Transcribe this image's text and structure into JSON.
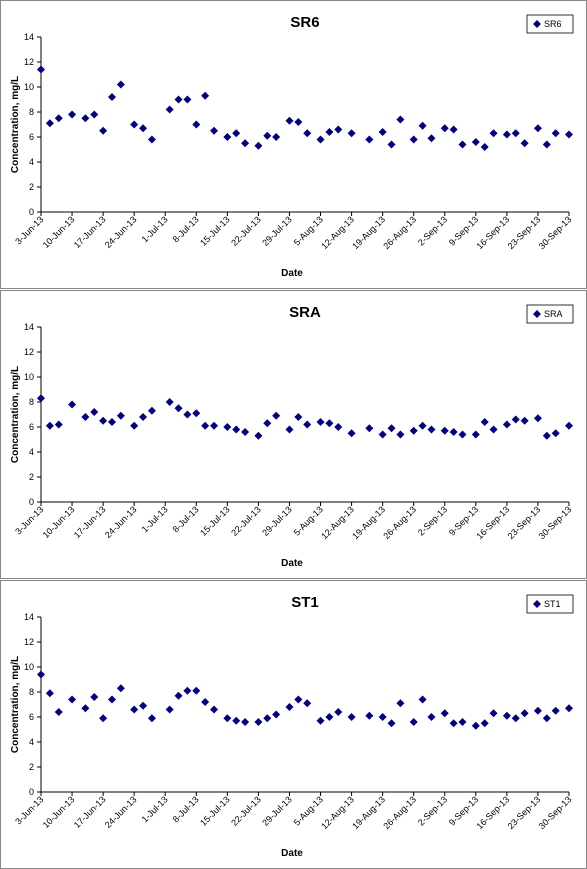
{
  "chart_data": [
    {
      "type": "scatter",
      "title": "SR6",
      "x_label": "Date",
      "y_label": "Concentration, mg/L",
      "marker": "diamond",
      "grid": false,
      "legend": "top-right",
      "x": [
        "2013-06-03",
        "2013-06-05",
        "2013-06-07",
        "2013-06-10",
        "2013-06-13",
        "2013-06-15",
        "2013-06-17",
        "2013-06-19",
        "2013-06-21",
        "2013-06-24",
        "2013-06-26",
        "2013-06-28",
        "2013-07-02",
        "2013-07-04",
        "2013-07-06",
        "2013-07-08",
        "2013-07-10",
        "2013-07-12",
        "2013-07-15",
        "2013-07-17",
        "2013-07-19",
        "2013-07-22",
        "2013-07-24",
        "2013-07-26",
        "2013-07-29",
        "2013-07-31",
        "2013-08-02",
        "2013-08-05",
        "2013-08-07",
        "2013-08-09",
        "2013-08-12",
        "2013-08-16",
        "2013-08-19",
        "2013-08-21",
        "2013-08-23",
        "2013-08-26",
        "2013-08-28",
        "2013-08-30",
        "2013-09-02",
        "2013-09-04",
        "2013-09-06",
        "2013-09-09",
        "2013-09-11",
        "2013-09-13",
        "2013-09-16",
        "2013-09-18",
        "2013-09-20",
        "2013-09-23",
        "2013-09-25",
        "2013-09-27",
        "2013-09-30"
      ],
      "series": [
        {
          "name": "SR6",
          "color": "#000080",
          "values": [
            11.4,
            7.1,
            7.5,
            7.8,
            7.5,
            7.8,
            6.5,
            9.2,
            10.2,
            7.0,
            6.7,
            5.8,
            8.2,
            9.0,
            9.0,
            7.0,
            9.3,
            6.5,
            6.0,
            6.3,
            5.5,
            5.3,
            6.1,
            6.0,
            7.3,
            7.2,
            6.3,
            5.8,
            6.4,
            6.6,
            6.3,
            5.8,
            6.4,
            5.4,
            7.4,
            5.8,
            6.9,
            5.9,
            6.7,
            6.6,
            5.4,
            5.6,
            5.2,
            6.3,
            6.2,
            6.3,
            5.5,
            6.7,
            5.4,
            6.3,
            6.2
          ]
        }
      ],
      "xlim": [
        "2013-06-03",
        "2013-09-30"
      ],
      "xticks": [
        {
          "value": "2013-06-03",
          "label": "3-Jun-13"
        },
        {
          "value": "2013-06-10",
          "label": "10-Jun-13"
        },
        {
          "value": "2013-06-17",
          "label": "17-Jun-13"
        },
        {
          "value": "2013-06-24",
          "label": "24-Jun-13"
        },
        {
          "value": "2013-07-01",
          "label": "1-Jul-13"
        },
        {
          "value": "2013-07-08",
          "label": "8-Jul-13"
        },
        {
          "value": "2013-07-15",
          "label": "15-Jul-13"
        },
        {
          "value": "2013-07-22",
          "label": "22-Jul-13"
        },
        {
          "value": "2013-07-29",
          "label": "29-Jul-13"
        },
        {
          "value": "2013-08-05",
          "label": "5-Aug-13"
        },
        {
          "value": "2013-08-12",
          "label": "12-Aug-13"
        },
        {
          "value": "2013-08-19",
          "label": "19-Aug-13"
        },
        {
          "value": "2013-08-26",
          "label": "26-Aug-13"
        },
        {
          "value": "2013-09-02",
          "label": "2-Sep-13"
        },
        {
          "value": "2013-09-09",
          "label": "9-Sep-13"
        },
        {
          "value": "2013-09-16",
          "label": "16-Sep-13"
        },
        {
          "value": "2013-09-23",
          "label": "23-Sep-13"
        },
        {
          "value": "2013-09-30",
          "label": "30-Sep-13"
        }
      ],
      "ylim": [
        0,
        14
      ],
      "yticks": [
        0,
        2,
        4,
        6,
        8,
        10,
        12,
        14
      ]
    },
    {
      "type": "scatter",
      "title": "SRA",
      "x_label": "Date",
      "y_label": "Concentration, mg/L",
      "marker": "diamond",
      "grid": false,
      "legend": "top-right",
      "x": [
        "2013-06-03",
        "2013-06-05",
        "2013-06-07",
        "2013-06-10",
        "2013-06-13",
        "2013-06-15",
        "2013-06-17",
        "2013-06-19",
        "2013-06-21",
        "2013-06-24",
        "2013-06-26",
        "2013-06-28",
        "2013-07-02",
        "2013-07-04",
        "2013-07-06",
        "2013-07-08",
        "2013-07-10",
        "2013-07-12",
        "2013-07-15",
        "2013-07-17",
        "2013-07-19",
        "2013-07-22",
        "2013-07-24",
        "2013-07-26",
        "2013-07-29",
        "2013-07-31",
        "2013-08-02",
        "2013-08-05",
        "2013-08-07",
        "2013-08-09",
        "2013-08-12",
        "2013-08-16",
        "2013-08-19",
        "2013-08-21",
        "2013-08-23",
        "2013-08-26",
        "2013-08-28",
        "2013-08-30",
        "2013-09-02",
        "2013-09-04",
        "2013-09-06",
        "2013-09-09",
        "2013-09-11",
        "2013-09-13",
        "2013-09-16",
        "2013-09-18",
        "2013-09-20",
        "2013-09-23",
        "2013-09-25",
        "2013-09-27",
        "2013-09-30"
      ],
      "series": [
        {
          "name": "SRA",
          "color": "#000080",
          "values": [
            8.3,
            6.1,
            6.2,
            7.8,
            6.8,
            7.2,
            6.5,
            6.4,
            6.9,
            6.1,
            6.8,
            7.3,
            8.0,
            7.5,
            7.0,
            7.1,
            6.1,
            6.1,
            6.0,
            5.8,
            5.6,
            5.3,
            6.3,
            6.9,
            5.8,
            6.8,
            6.2,
            6.4,
            6.3,
            6.0,
            5.5,
            5.9,
            5.4,
            5.9,
            5.4,
            5.7,
            6.1,
            5.8,
            5.7,
            5.6,
            5.4,
            5.4,
            6.4,
            5.8,
            6.2,
            6.6,
            6.5,
            6.7,
            5.3,
            5.5,
            6.1
          ]
        }
      ],
      "xlim": [
        "2013-06-03",
        "2013-09-30"
      ],
      "xticks": [
        {
          "value": "2013-06-03",
          "label": "3-Jun-13"
        },
        {
          "value": "2013-06-10",
          "label": "10-Jun-13"
        },
        {
          "value": "2013-06-17",
          "label": "17-Jun-13"
        },
        {
          "value": "2013-06-24",
          "label": "24-Jun-13"
        },
        {
          "value": "2013-07-01",
          "label": "1-Jul-13"
        },
        {
          "value": "2013-07-08",
          "label": "8-Jul-13"
        },
        {
          "value": "2013-07-15",
          "label": "15-Jul-13"
        },
        {
          "value": "2013-07-22",
          "label": "22-Jul-13"
        },
        {
          "value": "2013-07-29",
          "label": "29-Jul-13"
        },
        {
          "value": "2013-08-05",
          "label": "5-Aug-13"
        },
        {
          "value": "2013-08-12",
          "label": "12-Aug-13"
        },
        {
          "value": "2013-08-19",
          "label": "19-Aug-13"
        },
        {
          "value": "2013-08-26",
          "label": "26-Aug-13"
        },
        {
          "value": "2013-09-02",
          "label": "2-Sep-13"
        },
        {
          "value": "2013-09-09",
          "label": "9-Sep-13"
        },
        {
          "value": "2013-09-16",
          "label": "16-Sep-13"
        },
        {
          "value": "2013-09-23",
          "label": "23-Sep-13"
        },
        {
          "value": "2013-09-30",
          "label": "30-Sep-13"
        }
      ],
      "ylim": [
        0,
        14
      ],
      "yticks": [
        0,
        2,
        4,
        6,
        8,
        10,
        12,
        14
      ]
    },
    {
      "type": "scatter",
      "title": "ST1",
      "x_label": "Date",
      "y_label": "Concentration, mg/L",
      "marker": "diamond",
      "grid": false,
      "legend": "top-right",
      "x": [
        "2013-06-03",
        "2013-06-05",
        "2013-06-07",
        "2013-06-10",
        "2013-06-13",
        "2013-06-15",
        "2013-06-17",
        "2013-06-19",
        "2013-06-21",
        "2013-06-24",
        "2013-06-26",
        "2013-06-28",
        "2013-07-02",
        "2013-07-04",
        "2013-07-06",
        "2013-07-08",
        "2013-07-10",
        "2013-07-12",
        "2013-07-15",
        "2013-07-17",
        "2013-07-19",
        "2013-07-22",
        "2013-07-24",
        "2013-07-26",
        "2013-07-29",
        "2013-07-31",
        "2013-08-02",
        "2013-08-05",
        "2013-08-07",
        "2013-08-09",
        "2013-08-12",
        "2013-08-16",
        "2013-08-19",
        "2013-08-21",
        "2013-08-23",
        "2013-08-26",
        "2013-08-28",
        "2013-08-30",
        "2013-09-02",
        "2013-09-04",
        "2013-09-06",
        "2013-09-09",
        "2013-09-11",
        "2013-09-13",
        "2013-09-16",
        "2013-09-18",
        "2013-09-20",
        "2013-09-23",
        "2013-09-25",
        "2013-09-27",
        "2013-09-30"
      ],
      "series": [
        {
          "name": "ST1",
          "color": "#000080",
          "values": [
            9.4,
            7.9,
            6.4,
            7.4,
            6.7,
            7.6,
            5.9,
            7.4,
            8.3,
            6.6,
            6.9,
            5.9,
            6.6,
            7.7,
            8.1,
            8.1,
            7.2,
            6.6,
            5.9,
            5.7,
            5.6,
            5.6,
            5.9,
            6.2,
            6.8,
            7.4,
            7.1,
            5.7,
            6.0,
            6.4,
            6.0,
            6.1,
            6.0,
            5.5,
            7.1,
            5.6,
            7.4,
            6.0,
            6.3,
            5.5,
            5.6,
            5.3,
            5.5,
            6.3,
            6.1,
            5.9,
            6.3,
            6.5,
            5.9,
            6.5,
            6.7
          ]
        }
      ],
      "xlim": [
        "2013-06-03",
        "2013-09-30"
      ],
      "xticks": [
        {
          "value": "2013-06-03",
          "label": "3-Jun-13"
        },
        {
          "value": "2013-06-10",
          "label": "10-Jun-13"
        },
        {
          "value": "2013-06-17",
          "label": "17-Jun-13"
        },
        {
          "value": "2013-06-24",
          "label": "24-Jun-13"
        },
        {
          "value": "2013-07-01",
          "label": "1-Jul-13"
        },
        {
          "value": "2013-07-08",
          "label": "8-Jul-13"
        },
        {
          "value": "2013-07-15",
          "label": "15-Jul-13"
        },
        {
          "value": "2013-07-22",
          "label": "22-Jul-13"
        },
        {
          "value": "2013-07-29",
          "label": "29-Jul-13"
        },
        {
          "value": "2013-08-05",
          "label": "5-Aug-13"
        },
        {
          "value": "2013-08-12",
          "label": "12-Aug-13"
        },
        {
          "value": "2013-08-19",
          "label": "19-Aug-13"
        },
        {
          "value": "2013-08-26",
          "label": "26-Aug-13"
        },
        {
          "value": "2013-09-02",
          "label": "2-Sep-13"
        },
        {
          "value": "2013-09-09",
          "label": "9-Sep-13"
        },
        {
          "value": "2013-09-16",
          "label": "16-Sep-13"
        },
        {
          "value": "2013-09-23",
          "label": "23-Sep-13"
        },
        {
          "value": "2013-09-30",
          "label": "30-Sep-13"
        }
      ],
      "ylim": [
        0,
        14
      ],
      "yticks": [
        0,
        2,
        4,
        6,
        8,
        10,
        12,
        14
      ]
    }
  ]
}
